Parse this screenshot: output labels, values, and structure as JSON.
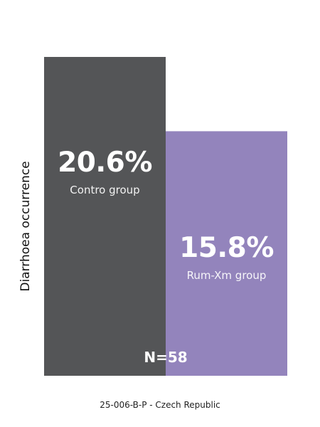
{
  "chart_data": {
    "type": "bar",
    "categories": [
      "Contro group",
      "Rum-Xm group"
    ],
    "values": [
      20.6,
      15.8
    ],
    "value_labels": [
      "20.6%",
      "15.8%"
    ],
    "colors": [
      "#545557",
      "#9384bc"
    ],
    "ylabel": "Diarrhoea occurrence",
    "ylim": [
      0,
      26
    ],
    "grid": false,
    "annotation": "N=58"
  },
  "footer": "25-006-B-P - Czech Republic"
}
